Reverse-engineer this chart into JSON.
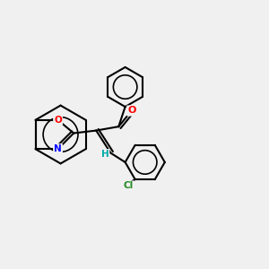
{
  "background_color": "#f0f0f0",
  "bond_color": "#000000",
  "atom_colors": {
    "O_carbonyl": "#ff0000",
    "O_ring": "#ff0000",
    "N": "#0000ff",
    "Cl": "#228b22",
    "H": "#00aaaa",
    "C": "#000000"
  },
  "title": "",
  "figsize": [
    3.0,
    3.0
  ],
  "dpi": 100
}
